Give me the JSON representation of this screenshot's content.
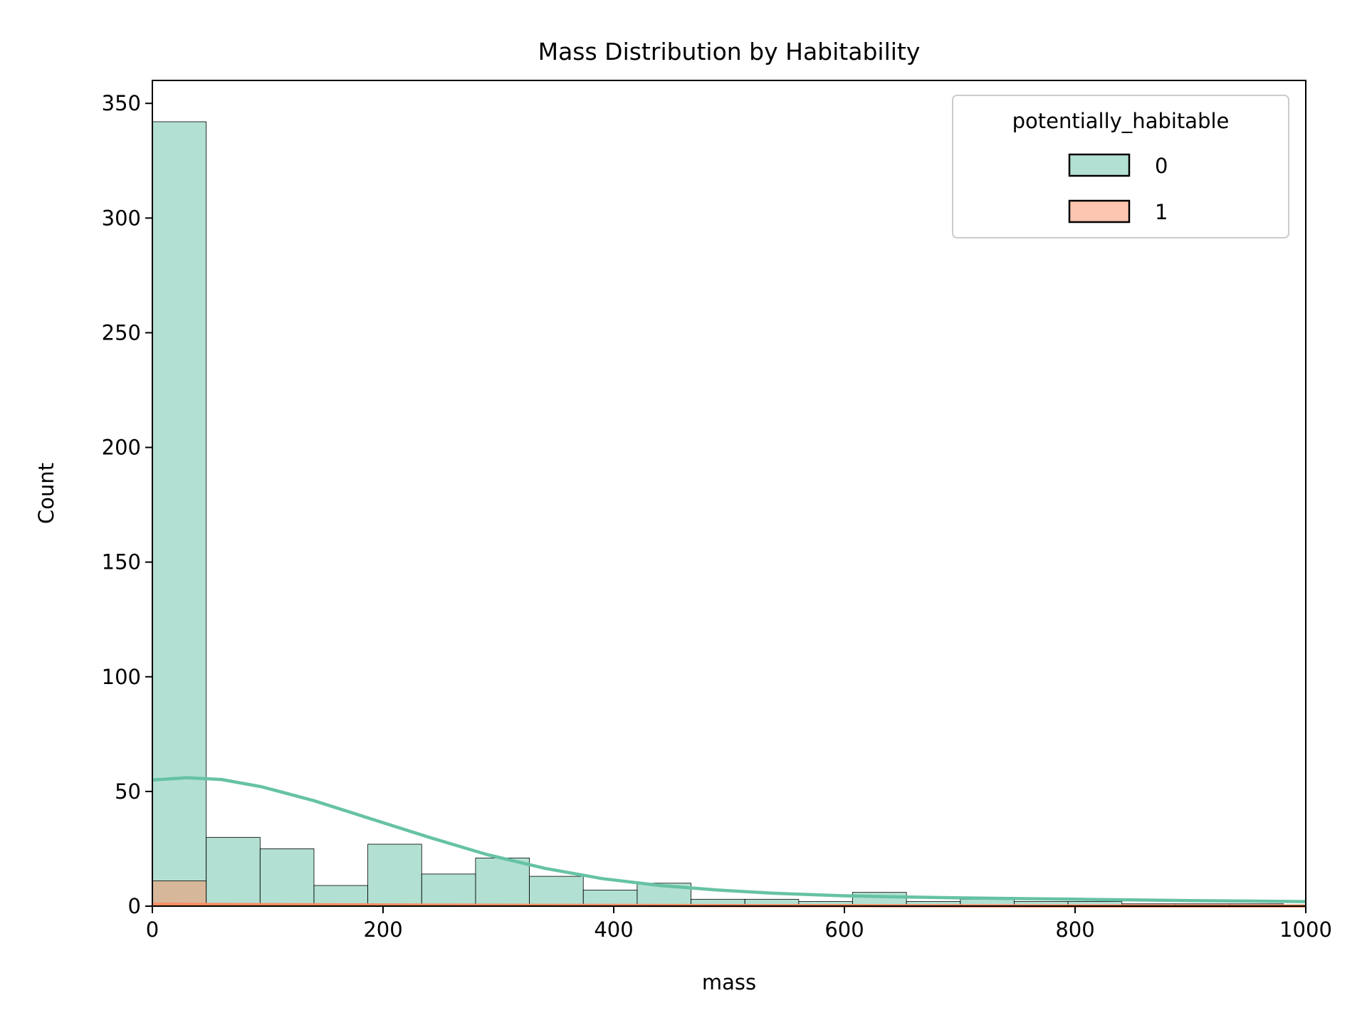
{
  "chart_data": {
    "type": "bar",
    "title": "Mass Distribution by Habitability",
    "xlabel": "mass",
    "ylabel": "Count",
    "xlim": [
      0,
      1000
    ],
    "ylim": [
      0,
      360
    ],
    "x_ticks": [
      0,
      200,
      400,
      600,
      800,
      1000
    ],
    "x_tick_labels": [
      "0",
      "200",
      "400",
      "600",
      "800",
      "1000"
    ],
    "y_ticks": [
      0,
      50,
      100,
      150,
      200,
      250,
      300,
      350
    ],
    "y_tick_labels": [
      "0",
      "50",
      "100",
      "150",
      "200",
      "250",
      "300",
      "350"
    ],
    "grid": false,
    "bin_width": 46.7,
    "legend": {
      "title": "potentially_habitable",
      "placement": "top-right",
      "entries": [
        {
          "label": "0",
          "color": "#66c2a5"
        },
        {
          "label": "1",
          "color": "#fc8d62"
        }
      ]
    },
    "series": [
      {
        "name": "0",
        "color": "#66c2a5",
        "bins": [
          {
            "x0": 0,
            "x1": 46.7,
            "count": 342
          },
          {
            "x0": 46.7,
            "x1": 93.4,
            "count": 30
          },
          {
            "x0": 93.4,
            "x1": 140.1,
            "count": 25
          },
          {
            "x0": 140.1,
            "x1": 186.8,
            "count": 9
          },
          {
            "x0": 186.8,
            "x1": 233.5,
            "count": 27
          },
          {
            "x0": 233.5,
            "x1": 280.2,
            "count": 14
          },
          {
            "x0": 280.2,
            "x1": 326.9,
            "count": 21
          },
          {
            "x0": 326.9,
            "x1": 373.6,
            "count": 13
          },
          {
            "x0": 373.6,
            "x1": 420.3,
            "count": 7
          },
          {
            "x0": 420.3,
            "x1": 467.0,
            "count": 10
          },
          {
            "x0": 467.0,
            "x1": 513.7,
            "count": 3
          },
          {
            "x0": 513.7,
            "x1": 560.4,
            "count": 3
          },
          {
            "x0": 560.4,
            "x1": 607.1,
            "count": 2
          },
          {
            "x0": 607.1,
            "x1": 653.8,
            "count": 6
          },
          {
            "x0": 653.8,
            "x1": 700.5,
            "count": 2
          },
          {
            "x0": 700.5,
            "x1": 747.2,
            "count": 3
          },
          {
            "x0": 747.2,
            "x1": 793.9,
            "count": 2
          },
          {
            "x0": 793.9,
            "x1": 840.6,
            "count": 2
          },
          {
            "x0": 840.6,
            "x1": 887.3,
            "count": 1
          },
          {
            "x0": 887.3,
            "x1": 934.0,
            "count": 1
          },
          {
            "x0": 934.0,
            "x1": 980.7,
            "count": 1
          }
        ],
        "kde": [
          [
            0,
            55
          ],
          [
            30,
            56
          ],
          [
            60,
            55.2
          ],
          [
            95,
            52
          ],
          [
            140,
            46
          ],
          [
            190,
            38
          ],
          [
            240,
            30
          ],
          [
            290,
            22.5
          ],
          [
            340,
            16.5
          ],
          [
            390,
            12
          ],
          [
            440,
            9
          ],
          [
            490,
            7
          ],
          [
            540,
            5.6
          ],
          [
            600,
            4.5
          ],
          [
            650,
            4
          ],
          [
            700,
            3.6
          ],
          [
            750,
            3.3
          ],
          [
            800,
            3
          ],
          [
            850,
            2.7
          ],
          [
            900,
            2.4
          ],
          [
            950,
            2.2
          ],
          [
            1000,
            2
          ]
        ]
      },
      {
        "name": "1",
        "color": "#fc8d62",
        "bins": [
          {
            "x0": 0,
            "x1": 46.7,
            "count": 11
          }
        ],
        "kde": [
          [
            0,
            0.8
          ],
          [
            200,
            0.5
          ],
          [
            400,
            0.3
          ],
          [
            600,
            0.2
          ],
          [
            800,
            0.1
          ],
          [
            1000,
            0.05
          ]
        ]
      }
    ]
  }
}
